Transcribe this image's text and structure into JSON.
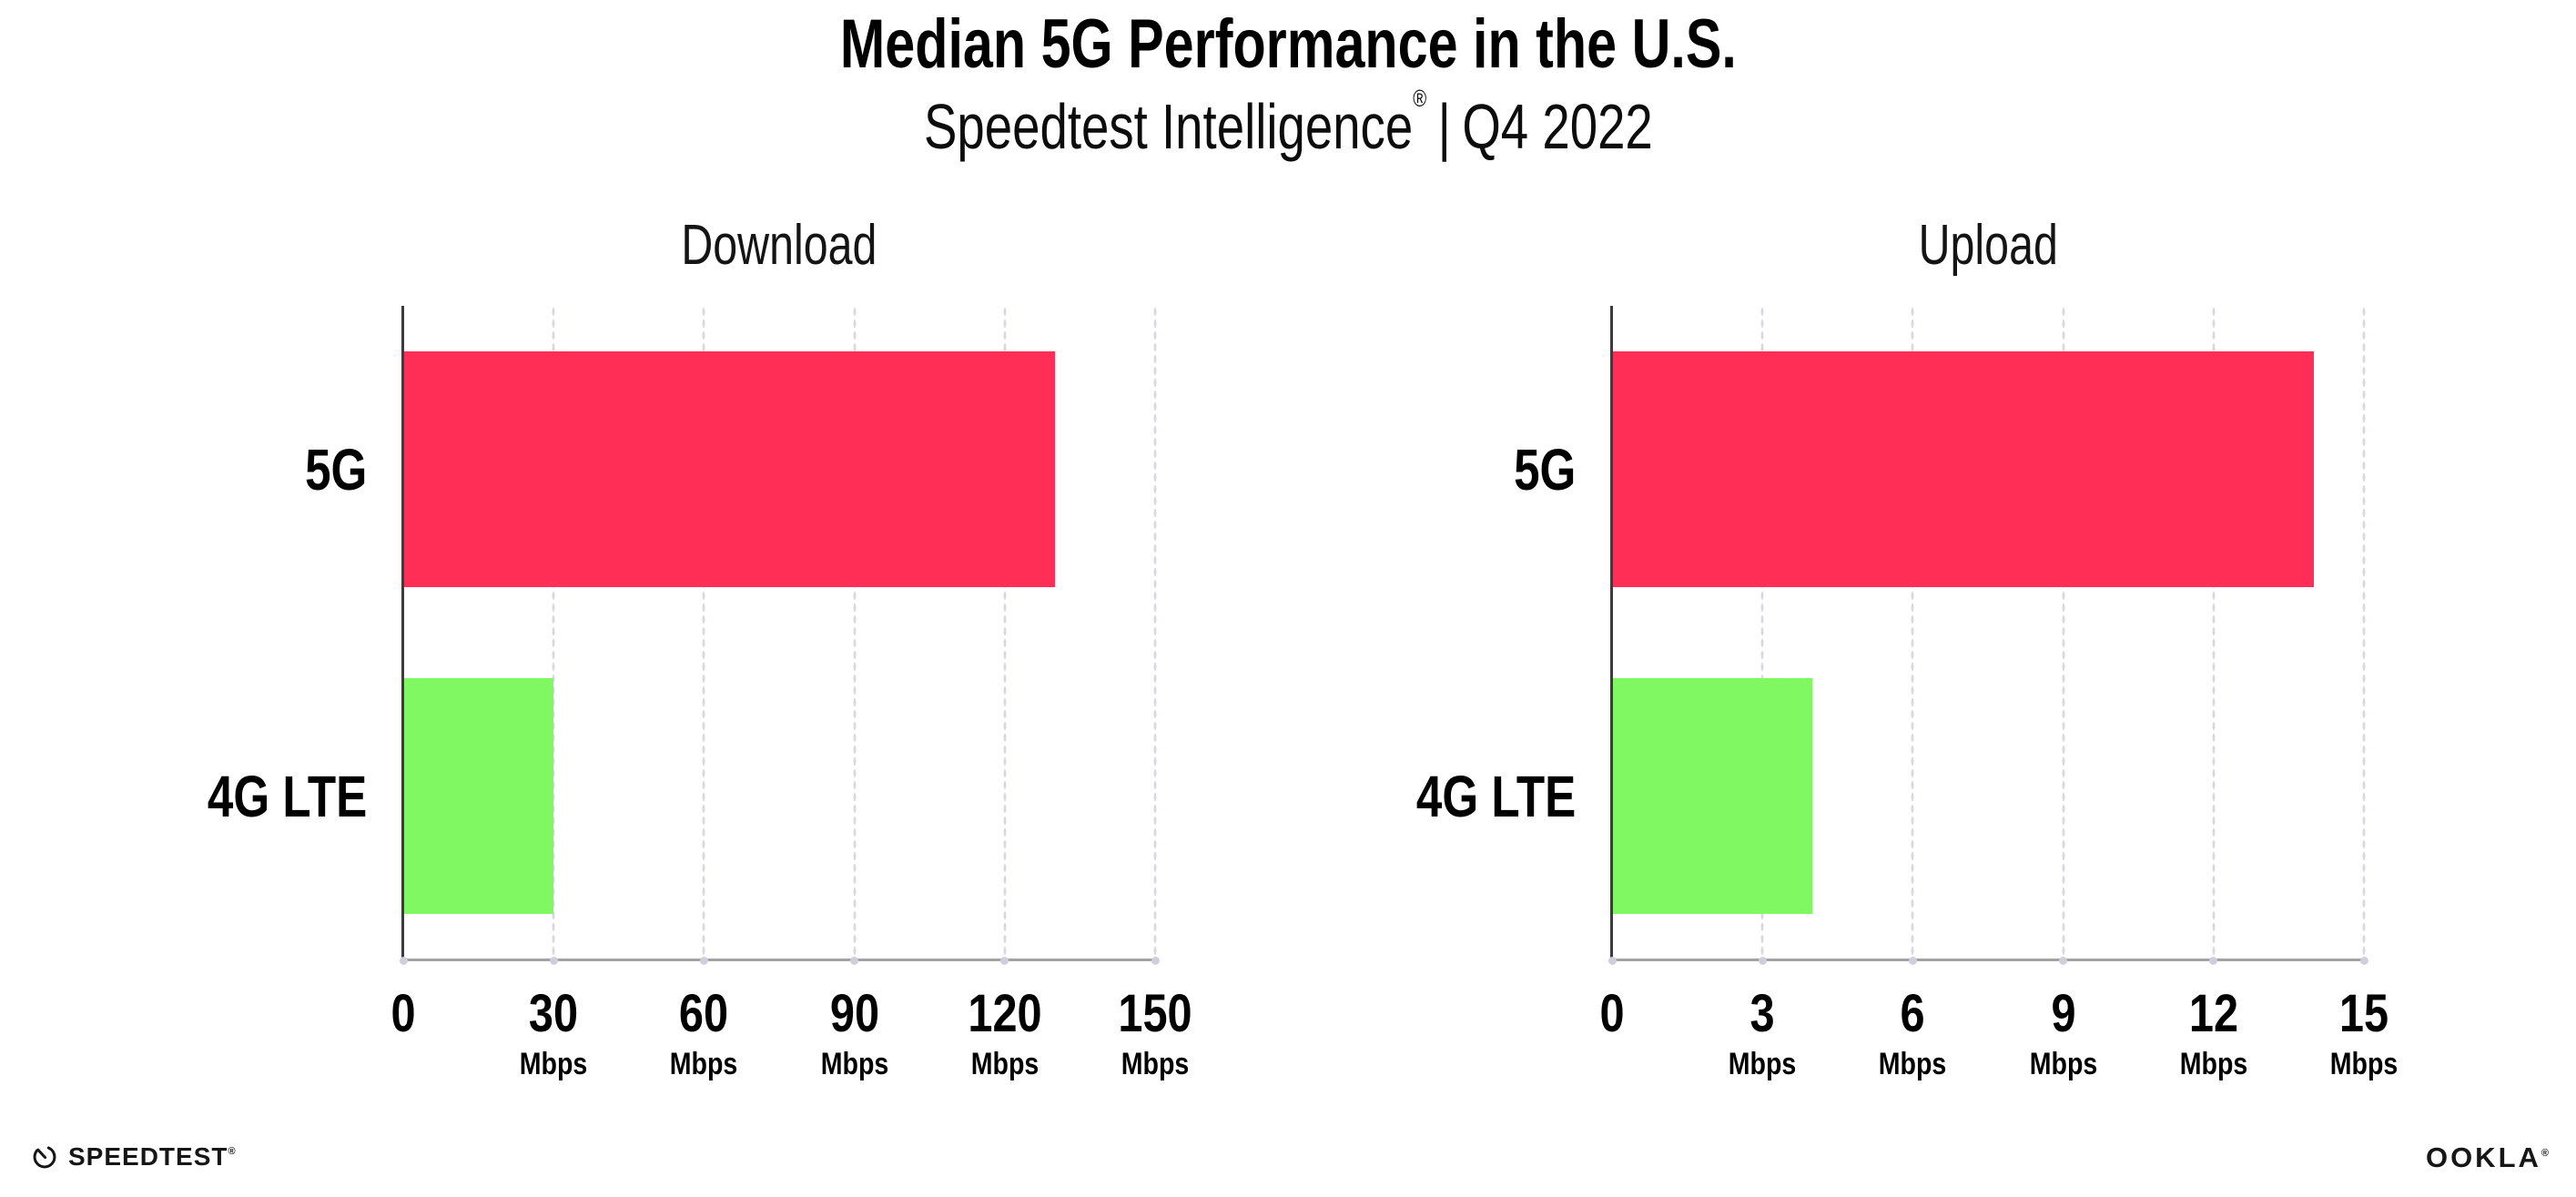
{
  "page": {
    "background": "#ffffff"
  },
  "header": {
    "title": "Median 5G Performance in the U.S.",
    "subtitle": {
      "brand": "Speedtest Intelligence",
      "registered_mark": "®",
      "separator": "|",
      "period": "Q4 2022"
    }
  },
  "chart_data": [
    {
      "type": "bar",
      "orientation": "horizontal",
      "title": "Download",
      "categories": [
        "5G",
        "4G LTE"
      ],
      "values": [
        130,
        30
      ],
      "unit": "Mbps",
      "xlim": [
        0,
        150
      ],
      "xticks": [
        0,
        30,
        60,
        90,
        120,
        150
      ],
      "tick_unit_shown_for_zero": false,
      "grid": "vertical dotted gridlines at each tick",
      "legend": "none",
      "bar_colors": [
        "#ff2e56",
        "#80f862"
      ]
    },
    {
      "type": "bar",
      "orientation": "horizontal",
      "title": "Upload",
      "categories": [
        "5G",
        "4G LTE"
      ],
      "values": [
        14,
        4
      ],
      "unit": "Mbps",
      "xlim": [
        0,
        15
      ],
      "xticks": [
        0,
        3,
        6,
        9,
        12,
        15
      ],
      "tick_unit_shown_for_zero": false,
      "grid": "vertical dotted gridlines at each tick",
      "legend": "none",
      "bar_colors": [
        "#ff2e56",
        "#80f862"
      ]
    }
  ],
  "footer": {
    "speedtest": {
      "label": "SPEEDTEST",
      "trademark": "®",
      "icon": "speedtest-gauge-icon"
    },
    "ookla": {
      "label": "OOKLA",
      "trademark": "®"
    }
  },
  "colors": {
    "bar_5g": "#ff2e56",
    "bar_4g_lte": "#80f862",
    "y_axis": "#3c3c3c",
    "x_axis": "#a3a3a3",
    "gridline_dots": "#d9d9e4",
    "tick_dots": "#cfcfdb",
    "text": "#000000"
  }
}
